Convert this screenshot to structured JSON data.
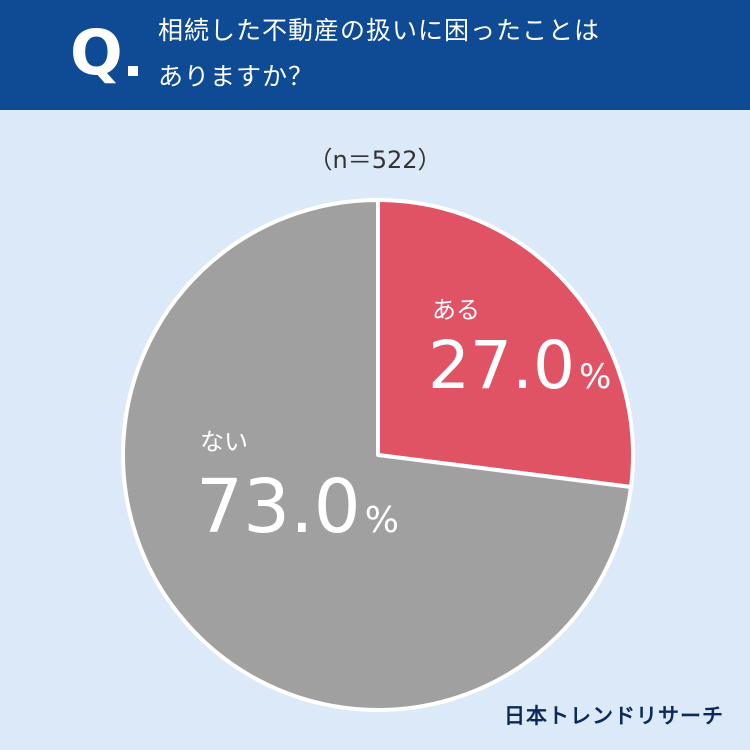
{
  "header": {
    "q_label": "Q",
    "question_line1": "相続した不動産の扱いに困ったことは",
    "question_line2": "ありますか？"
  },
  "sample_label": "（n＝522）",
  "brand": "日本トレンドリサーチ",
  "chart_data": {
    "type": "pie",
    "start_angle_deg": 0,
    "direction": "clockwise",
    "slices": [
      {
        "label": "ある",
        "value": 27.0,
        "display": "27.0",
        "unit": "%",
        "color": "#e05364"
      },
      {
        "label": "ない",
        "value": 73.0,
        "display": "73.0",
        "unit": "%",
        "color": "#a0a0a0"
      }
    ],
    "separator_color": "#ffffff"
  }
}
